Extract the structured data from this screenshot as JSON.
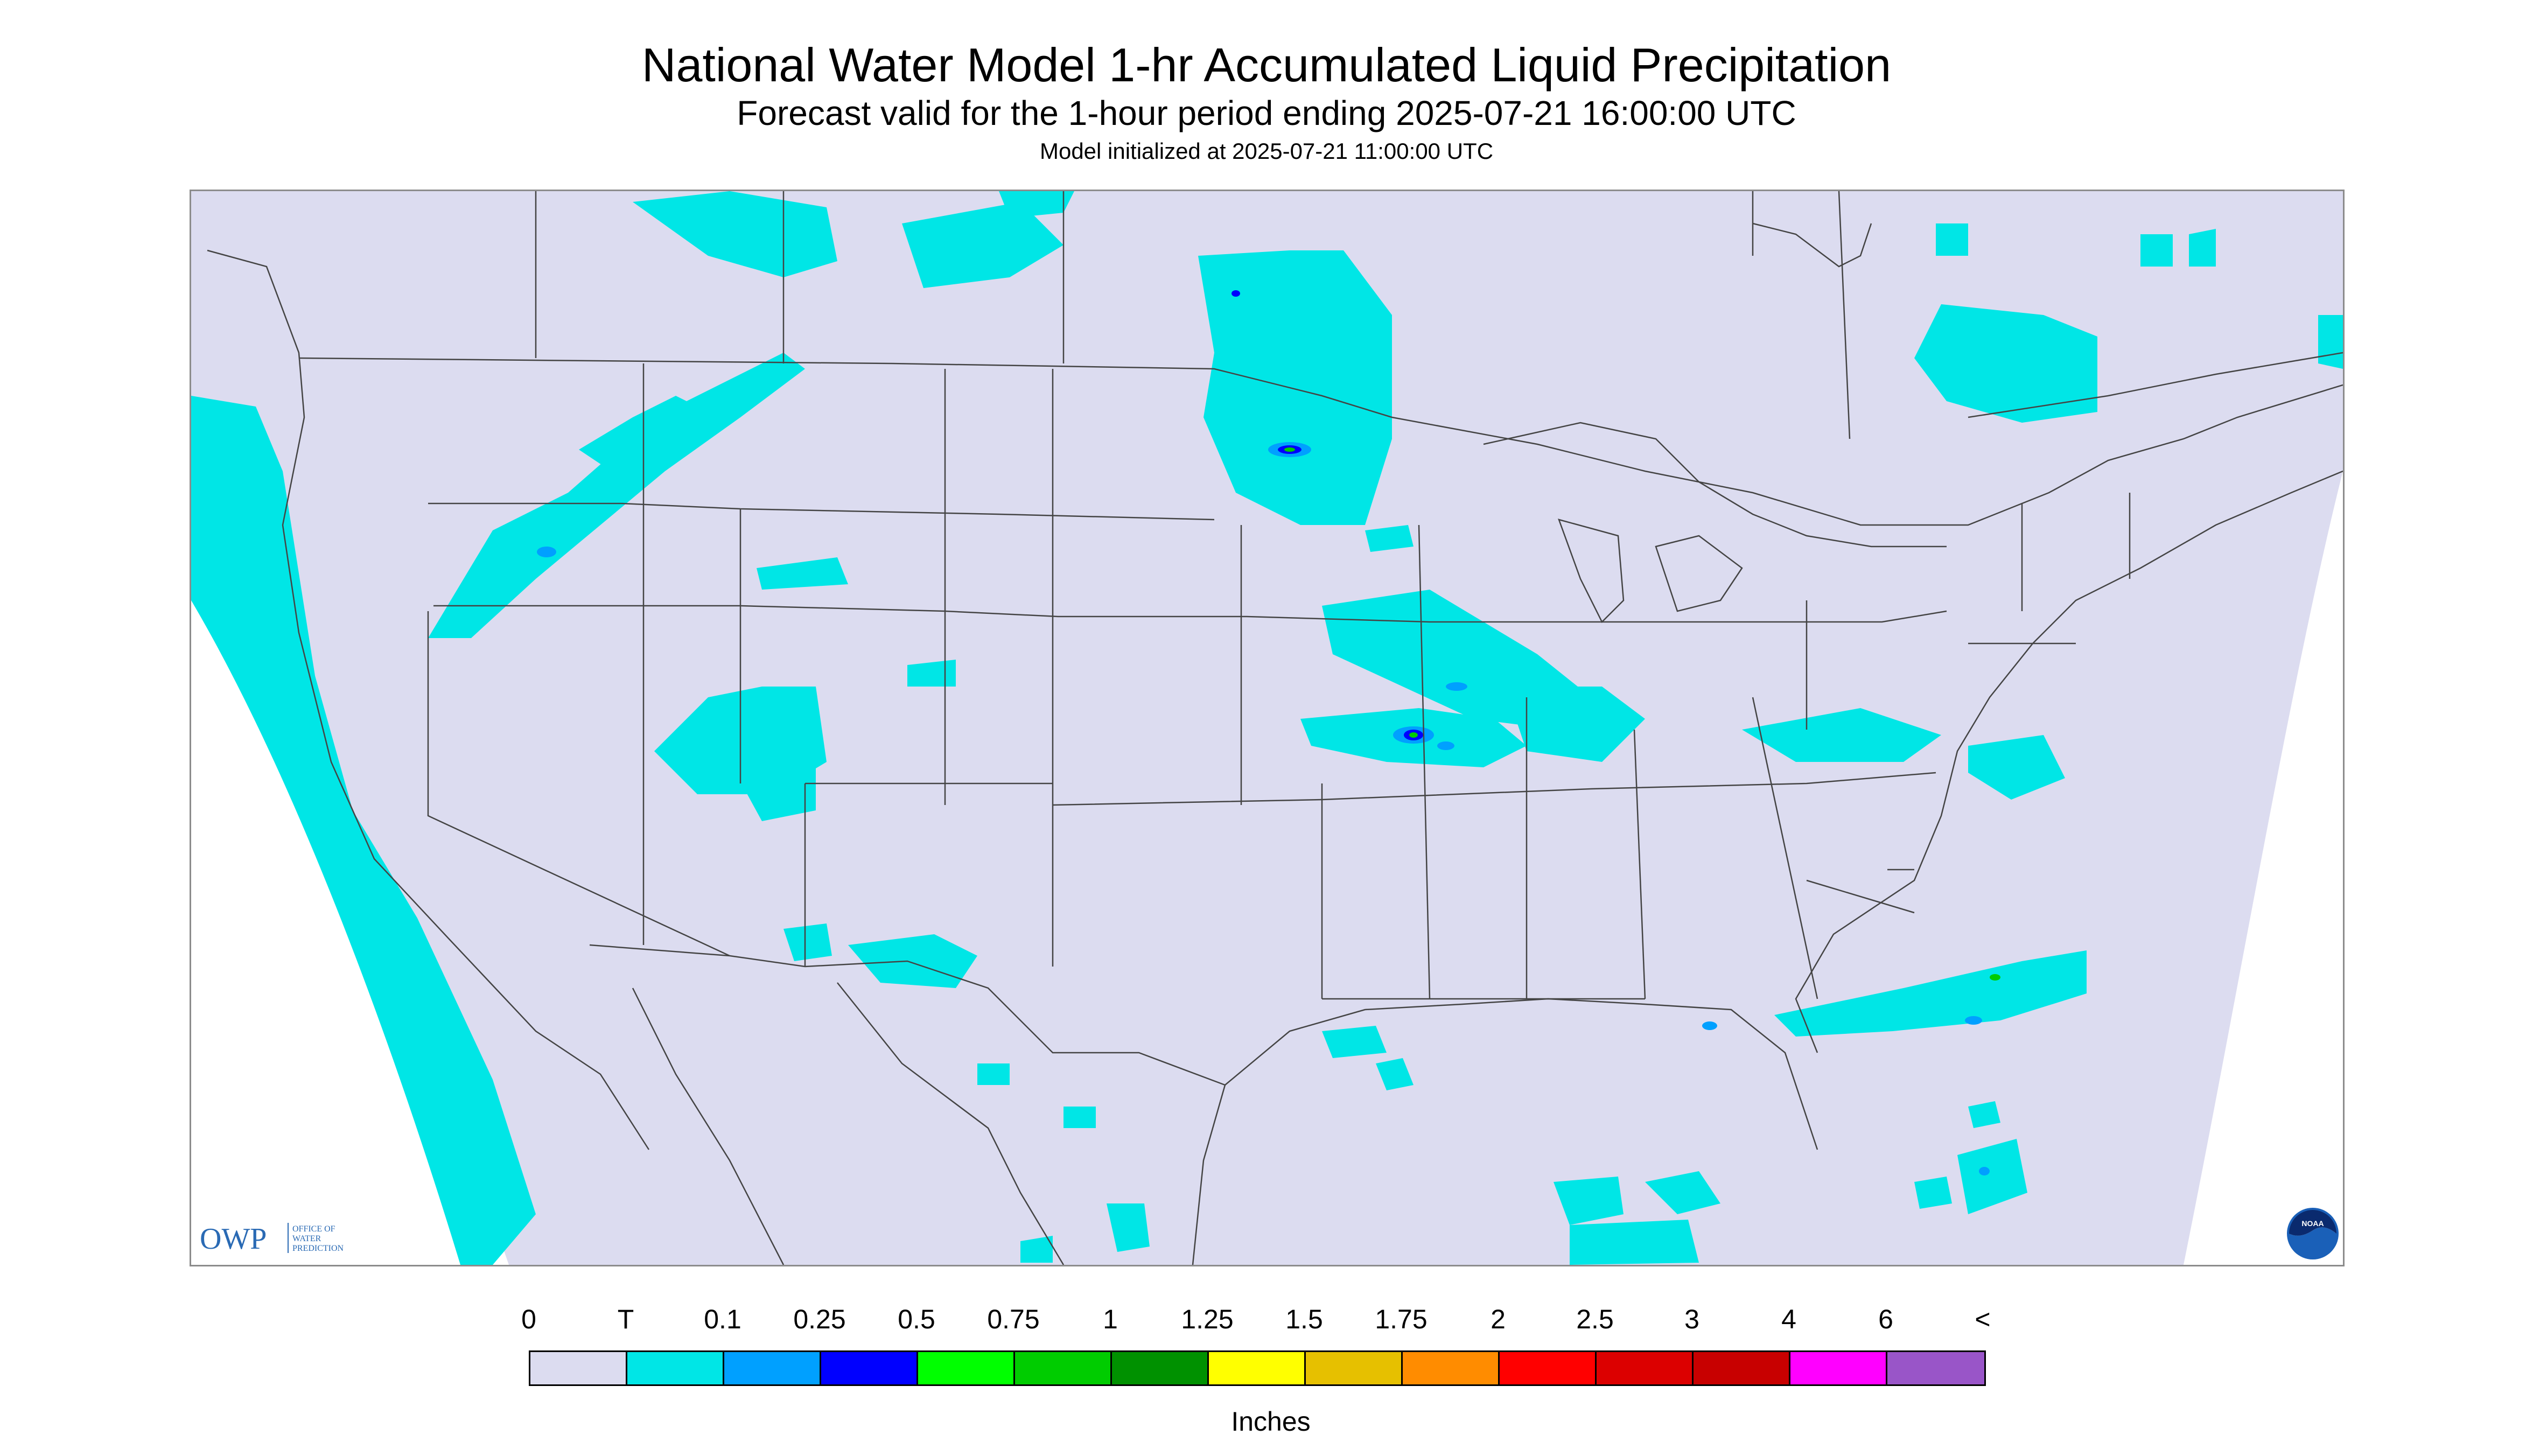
{
  "titles": {
    "main": "National Water Model 1-hr Accumulated Liquid Precipitation",
    "sub": "Forecast valid for the 1-hour period ending 2025-07-21 16:00:00 UTC",
    "init": "Model initialized at 2025-07-21 11:00:00 UTC"
  },
  "logos": {
    "owp_mark": "OWP",
    "owp_text": [
      "OFFICE OF",
      "WATER",
      "PREDICTION"
    ],
    "noaa_text": "NOAA"
  },
  "legend": {
    "labels": [
      "0",
      "T",
      "0.1",
      "0.25",
      "0.5",
      "0.75",
      "1",
      "1.25",
      "1.5",
      "1.75",
      "2",
      "2.5",
      "3",
      "4",
      "6",
      "<"
    ],
    "colors": [
      "#dcdcf0",
      "#00e6e6",
      "#00a0ff",
      "#0000ff",
      "#00ff00",
      "#00cc00",
      "#009100",
      "#ffff00",
      "#e6c000",
      "#ff8c00",
      "#ff0000",
      "#dc0000",
      "#c80000",
      "#ff00ff",
      "#9955c8"
    ],
    "units": "Inches"
  },
  "colors": {
    "background_land": "#dcdcf0",
    "trace": "#00e6e6",
    "light": "#00a0ff",
    "moderate": "#0000ff",
    "green": "#00cc00",
    "frame": "#8c8c8c"
  }
}
